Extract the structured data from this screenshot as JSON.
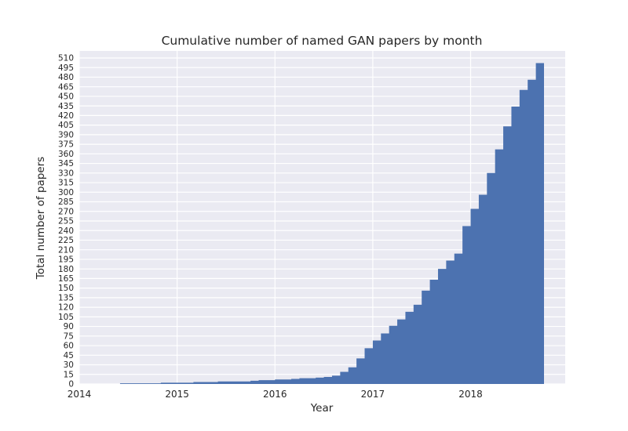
{
  "figure": {
    "background": "#ffffff"
  },
  "chart_data": {
    "type": "area",
    "step": true,
    "title": "Cumulative number of named GAN papers by month",
    "xlabel": "Year",
    "ylabel": "Total number of papers",
    "grid": true,
    "legend": "none",
    "months": [
      "2014-06",
      "2014-07",
      "2014-08",
      "2014-09",
      "2014-10",
      "2014-11",
      "2014-12",
      "2015-01",
      "2015-02",
      "2015-03",
      "2015-04",
      "2015-05",
      "2015-06",
      "2015-07",
      "2015-08",
      "2015-09",
      "2015-10",
      "2015-11",
      "2015-12",
      "2016-01",
      "2016-02",
      "2016-03",
      "2016-04",
      "2016-05",
      "2016-06",
      "2016-07",
      "2016-08",
      "2016-09",
      "2016-10",
      "2016-11",
      "2016-12",
      "2017-01",
      "2017-02",
      "2017-03",
      "2017-04",
      "2017-05",
      "2017-06",
      "2017-07",
      "2017-08",
      "2017-09",
      "2017-10",
      "2017-11",
      "2017-12",
      "2018-01",
      "2018-02",
      "2018-03",
      "2018-04",
      "2018-05",
      "2018-06",
      "2018-07",
      "2018-08",
      "2018-09"
    ],
    "values": [
      1,
      1,
      1,
      1,
      1,
      2,
      2,
      2,
      2,
      3,
      3,
      3,
      4,
      4,
      4,
      4,
      5,
      6,
      6,
      7,
      7,
      8,
      9,
      9,
      10,
      11,
      13,
      19,
      26,
      40,
      56,
      68,
      79,
      91,
      101,
      113,
      124,
      146,
      163,
      180,
      193,
      204,
      247,
      274,
      296,
      330,
      367,
      403,
      434,
      460,
      476,
      502
    ],
    "xticks": [
      "2014",
      "2015",
      "2016",
      "2017",
      "2018"
    ],
    "yticks": [
      0,
      15,
      30,
      45,
      60,
      75,
      90,
      105,
      120,
      135,
      150,
      165,
      180,
      195,
      210,
      225,
      240,
      255,
      270,
      285,
      300,
      315,
      330,
      345,
      360,
      375,
      390,
      405,
      420,
      435,
      450,
      465,
      480,
      495,
      510
    ],
    "ylim": [
      0,
      521
    ],
    "xlim_months_from_2014_01": [
      0,
      59.6
    ],
    "colors": {
      "fill": "#4c72b0",
      "plot_background": "#eaeaf2",
      "grid": "#ffffff",
      "text": "#262626"
    }
  }
}
